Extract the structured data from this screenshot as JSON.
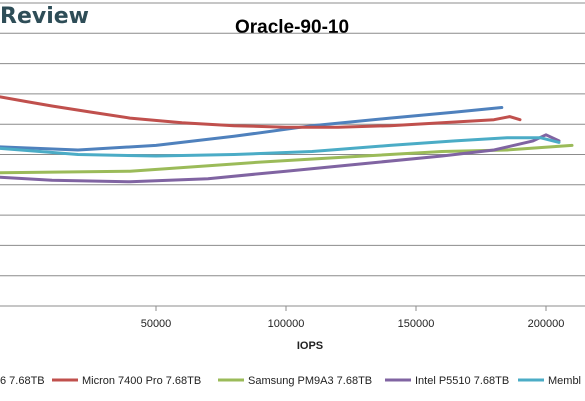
{
  "header": {
    "brand": "Review"
  },
  "chart_data": {
    "type": "line",
    "title": "Oracle-90-10",
    "xlabel": "IOPS",
    "ylabel": "",
    "xlim": [
      -10000,
      215000
    ],
    "ylim": [
      0,
      10
    ],
    "x_ticks": [
      50000,
      100000,
      150000,
      200000
    ],
    "x_tick_labels": [
      "50000",
      "100000",
      "150000",
      "200000"
    ],
    "y_gridlines": [
      1,
      2,
      3,
      4,
      5,
      6,
      7,
      8,
      9,
      10
    ],
    "grid": true,
    "legend_position": "bottom",
    "series": [
      {
        "name": "6 7.68TB",
        "color": "#4f81bd",
        "x": [
          -10000,
          20000,
          50000,
          80000,
          110000,
          140000,
          165000,
          183000
        ],
        "y": [
          5.25,
          5.15,
          5.3,
          5.6,
          5.95,
          6.2,
          6.4,
          6.55
        ]
      },
      {
        "name": "Micron 7400 Pro 7.68TB",
        "color": "#c0504d",
        "x": [
          -10000,
          0,
          10000,
          25000,
          40000,
          60000,
          80000,
          100000,
          120000,
          140000,
          160000,
          180000,
          186000,
          190000
        ],
        "y": [
          6.9,
          6.75,
          6.6,
          6.4,
          6.2,
          6.05,
          5.95,
          5.9,
          5.9,
          5.95,
          6.05,
          6.15,
          6.25,
          6.15
        ]
      },
      {
        "name": "Samsung PM9A3 7.68TB",
        "color": "#9bbb59",
        "x": [
          -10000,
          40000,
          90000,
          130000,
          160000,
          185000,
          210000
        ],
        "y": [
          4.4,
          4.45,
          4.75,
          4.95,
          5.1,
          5.15,
          5.3
        ]
      },
      {
        "name": "Intel P5510 7.68TB",
        "color": "#8064a2",
        "x": [
          -10000,
          10000,
          40000,
          70000,
          100000,
          130000,
          160000,
          180000,
          195000,
          200000,
          205000
        ],
        "y": [
          4.25,
          4.15,
          4.1,
          4.2,
          4.45,
          4.7,
          4.95,
          5.15,
          5.45,
          5.65,
          5.45
        ]
      },
      {
        "name": "Membl",
        "color": "#4bacc6",
        "x": [
          -10000,
          20000,
          50000,
          80000,
          110000,
          140000,
          165000,
          185000,
          198000,
          205000
        ],
        "y": [
          5.2,
          5.0,
          4.95,
          5.0,
          5.1,
          5.3,
          5.45,
          5.55,
          5.55,
          5.4
        ]
      }
    ]
  }
}
